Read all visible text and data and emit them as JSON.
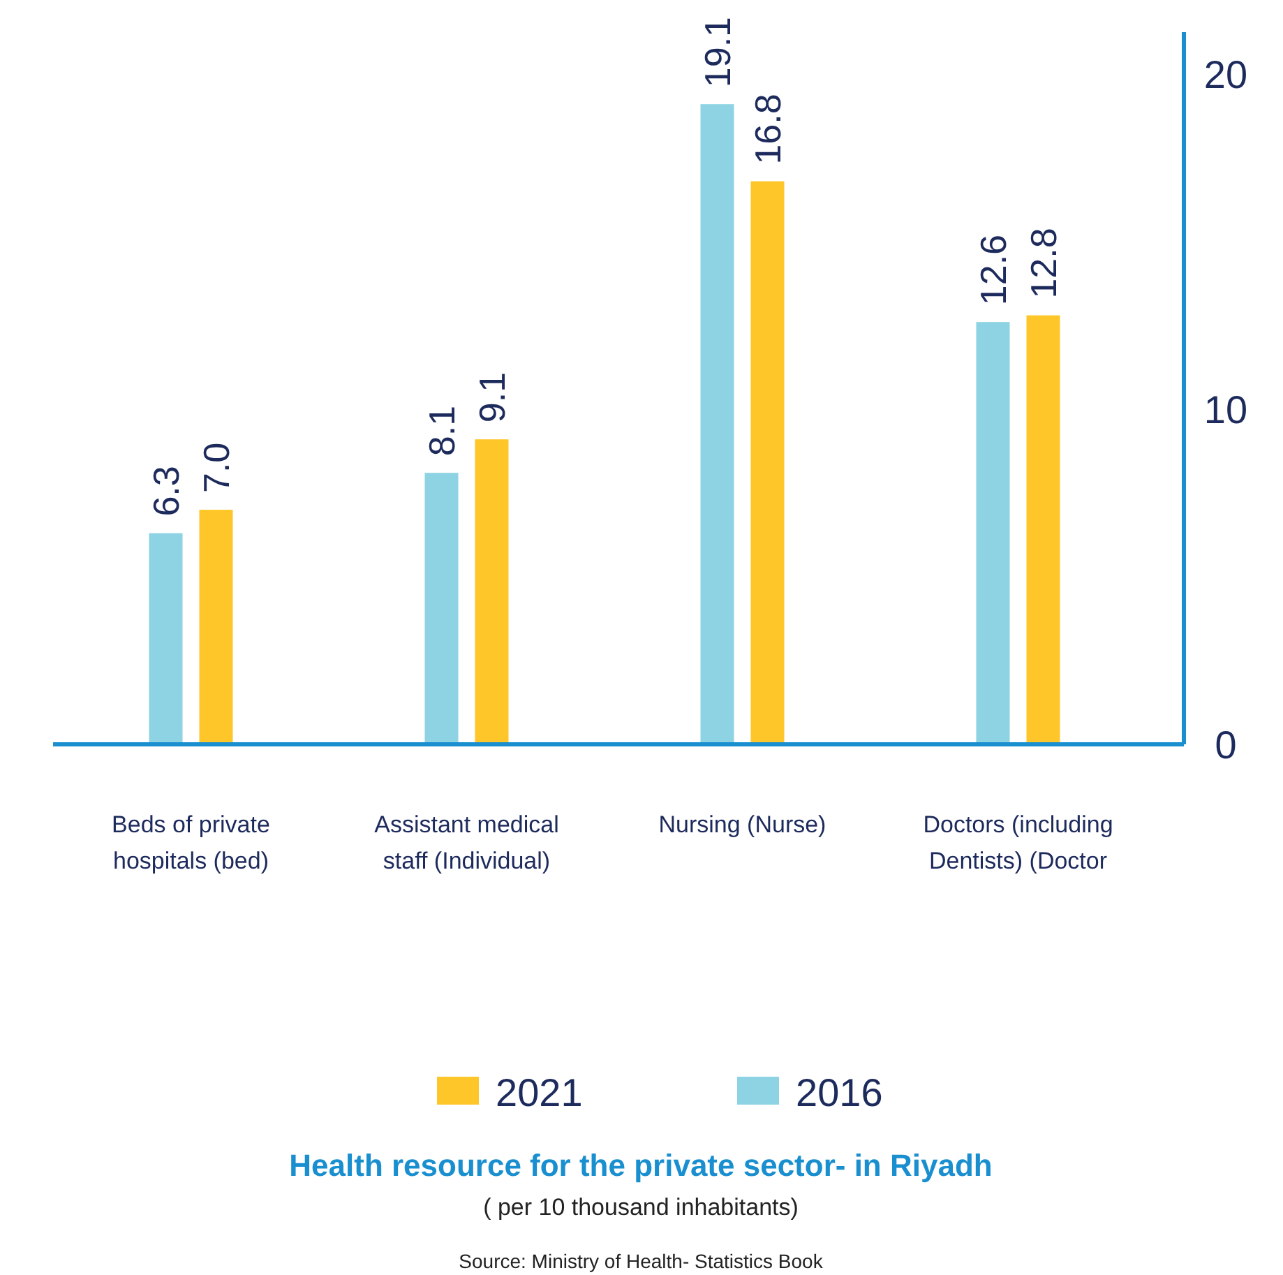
{
  "chart_data": {
    "type": "bar",
    "title": "Health resource for the private sector- in Riyadh",
    "subtitle": "( per 10 thousand inhabitants)",
    "annotations": [
      "Source: Ministry of Health- Statistics Book"
    ],
    "categories": [
      "Beds of private hospitals (bed)",
      "Assistant medical staff (Individual)",
      "Nursing (Nurse)",
      "Doctors (including Dentists) (Doctor"
    ],
    "series": [
      {
        "name": "2016",
        "color": "#8dd3e3",
        "values": [
          6.3,
          8.1,
          19.1,
          12.6
        ],
        "value_labels": [
          "6.3",
          "8.1",
          "19.1",
          "12.6"
        ]
      },
      {
        "name": "2021",
        "color": "#ffc629",
        "values": [
          7.0,
          9.1,
          16.8,
          12.8
        ],
        "value_labels": [
          "7.0",
          "9.1",
          "16.8",
          "12.8"
        ]
      }
    ],
    "ylim": [
      0,
      21.25
    ],
    "yticks": [
      0,
      10,
      20
    ],
    "grid": false,
    "legend": "bottom"
  }
}
